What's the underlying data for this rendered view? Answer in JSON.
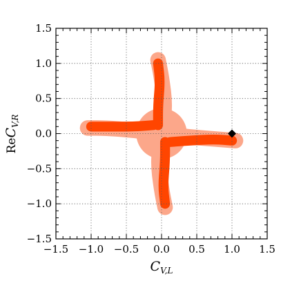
{
  "chart_data": {
    "type": "area",
    "xlim": [
      -1.5,
      1.5
    ],
    "ylim": [
      -1.5,
      1.5
    ],
    "x_ticks": [
      -1.5,
      -1.0,
      -0.5,
      0.0,
      0.5,
      1.0,
      1.5
    ],
    "y_ticks": [
      -1.5,
      -1.0,
      -0.5,
      0.0,
      0.5,
      1.0,
      1.5
    ],
    "x_tick_labels": [
      "−1.5",
      "−1.0",
      "−0.5",
      "0.0",
      "0.5",
      "1.0",
      "1.5"
    ],
    "y_tick_labels": [
      "−1.5",
      "−1.0",
      "−0.5",
      "0.0",
      "0.5",
      "1.0",
      "1.5"
    ],
    "xlabel": {
      "main": "C",
      "sub": "V,L"
    },
    "ylabel": {
      "prefix": "Re",
      "main": "C",
      "sub": "V,R"
    },
    "grid": true,
    "regions": [
      {
        "level": "outer",
        "color": "#fca78a",
        "arms": [
          {
            "points": [
              [
                0.0,
                0.0
              ],
              [
                0.05,
                0.4
              ],
              [
                0.0,
                0.8
              ],
              [
                -0.05,
                1.05
              ]
            ],
            "half_width": 0.11
          },
          {
            "points": [
              [
                0.0,
                0.0
              ],
              [
                -0.4,
                0.05
              ],
              [
                -0.8,
                0.08
              ],
              [
                -1.05,
                0.08
              ]
            ],
            "half_width": 0.11
          },
          {
            "points": [
              [
                0.0,
                0.0
              ],
              [
                0.4,
                -0.05
              ],
              [
                0.8,
                -0.08
              ],
              [
                1.05,
                -0.1
              ]
            ],
            "half_width": 0.11
          },
          {
            "points": [
              [
                0.0,
                0.0
              ],
              [
                -0.05,
                -0.4
              ],
              [
                0.0,
                -0.8
              ],
              [
                0.05,
                -1.05
              ]
            ],
            "half_width": 0.11
          }
        ],
        "core_half_width": 0.36
      },
      {
        "level": "inner",
        "color": "#ff4500",
        "arms": [
          {
            "points": [
              [
                -0.05,
                0.12
              ],
              [
                -0.05,
                0.4
              ],
              [
                -0.02,
                0.75
              ],
              [
                -0.05,
                1.0
              ]
            ],
            "half_width": 0.07
          },
          {
            "points": [
              [
                -0.12,
                0.12
              ],
              [
                -0.4,
                0.1
              ],
              [
                -0.75,
                0.1
              ],
              [
                -1.0,
                0.1
              ]
            ],
            "half_width": 0.07
          },
          {
            "points": [
              [
                0.12,
                -0.12
              ],
              [
                0.4,
                -0.1
              ],
              [
                0.75,
                -0.08
              ],
              [
                1.0,
                -0.1
              ]
            ],
            "half_width": 0.07
          },
          {
            "points": [
              [
                0.05,
                -0.12
              ],
              [
                0.05,
                -0.4
              ],
              [
                0.02,
                -0.75
              ],
              [
                0.05,
                -1.0
              ]
            ],
            "half_width": 0.07
          }
        ]
      }
    ],
    "marker": {
      "x": 1.0,
      "y": 0.0,
      "shape": "diamond",
      "color": "#000000"
    }
  }
}
